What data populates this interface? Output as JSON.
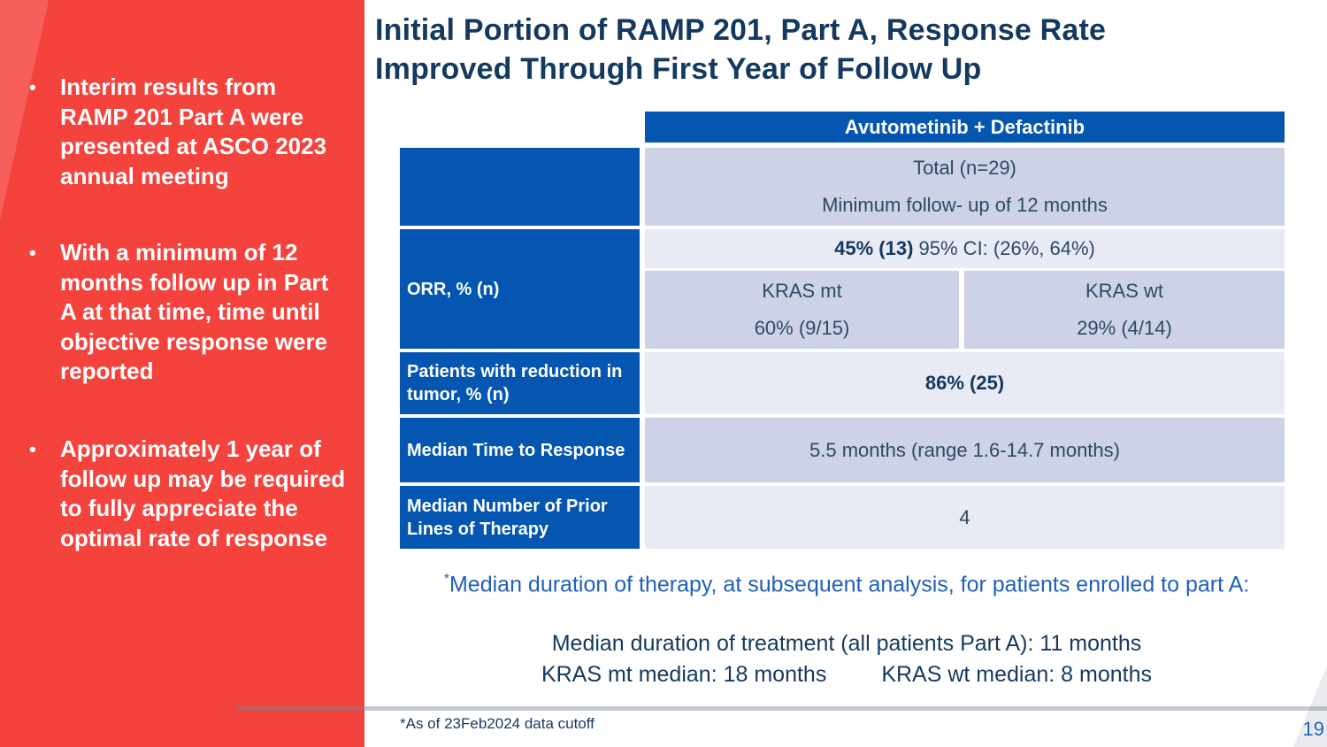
{
  "slide": {
    "title_line1": "Initial Portion of RAMP 201, Part A, Response Rate",
    "title_line2": "Improved Through First Year of Follow Up",
    "page_number": "19",
    "cutoff_note": "*As of 23Feb2024 data cutoff"
  },
  "sidebar": {
    "bullet_marker": "•",
    "bullets": [
      "Interim results from RAMP 201 Part A were presented at ASCO 2023 annual meeting",
      "With a minimum of 12 months follow up in Part A at that time, time until objective response were reported",
      "Approximately 1 year of follow up may be required to fully appreciate the optimal rate of response"
    ]
  },
  "table": {
    "header": "Avutometinib + Defactinib",
    "total_cell": {
      "line1": "Total (n=29)",
      "line2": "Minimum follow- up of 12 months"
    },
    "orr": {
      "label": "ORR, % (n)",
      "total_bold": "45% (13)",
      "total_rest": " 95% CI: (26%, 64%)",
      "kras_mt": {
        "line1": "KRAS mt",
        "line2": "60% (9/15)"
      },
      "kras_wt": {
        "line1": "KRAS wt",
        "line2": "29% (4/14)"
      }
    },
    "reduction": {
      "label": "Patients with reduction in tumor, % (n)",
      "value": "86% (25)"
    },
    "median_time": {
      "label": "Median Time to Response",
      "value": "5.5 months (range 1.6-14.7 months)"
    },
    "prior_lines": {
      "label": "Median Number of Prior Lines of Therapy",
      "value": "4"
    }
  },
  "notes": {
    "asterisk": "*",
    "blue_note": "Median duration of therapy, at subsequent analysis, for patients enrolled to part A:",
    "duration_all": "Median duration of treatment (all patients Part A): 11 months",
    "kras_mt_median": "KRAS mt median: 18 months",
    "kras_wt_median": "KRAS wt median: 8 months"
  },
  "colors": {
    "red": "#f4423c",
    "blue": "#0456b1",
    "lavender-dark": "#cdd2e6",
    "lavender-light": "#e8eaf4",
    "navy": "#14395f",
    "cell-text": "#2c4a66",
    "note-blue": "#2160ba",
    "page-blue": "#2563b8"
  }
}
